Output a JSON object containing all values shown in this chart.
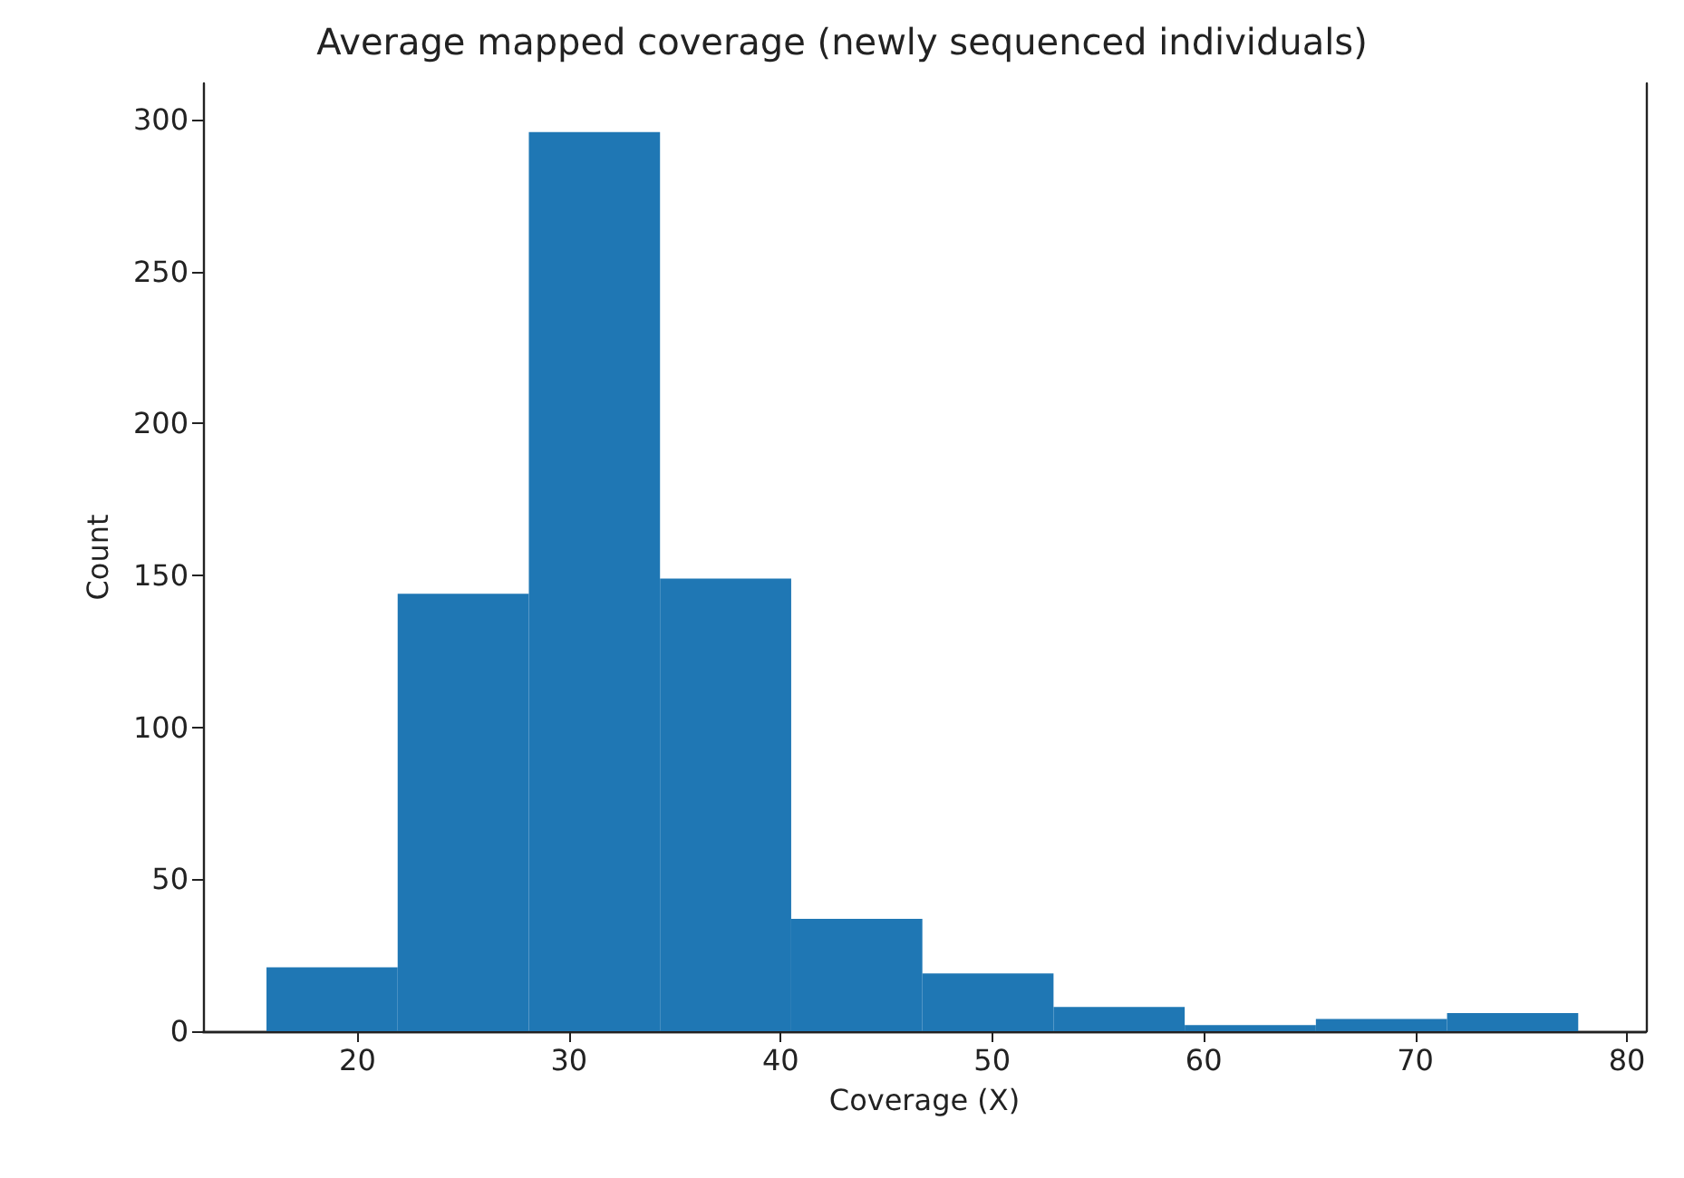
{
  "chart_data": {
    "type": "histogram",
    "title": "Average mapped coverage (newly sequenced individuals)",
    "xlabel": "Coverage (X)",
    "ylabel": "Count",
    "bins": [
      15.7,
      21.9,
      28.1,
      34.3,
      40.5,
      46.7,
      52.9,
      59.1,
      65.3,
      71.5,
      77.7
    ],
    "values": [
      21,
      144,
      296,
      149,
      37,
      19,
      8,
      2,
      4,
      6
    ],
    "color": "#1f77b4",
    "xlim": [
      12.7,
      80.9
    ],
    "xticks": [
      20,
      30,
      40,
      50,
      60,
      70,
      80
    ],
    "ylim": [
      0,
      312
    ],
    "yticks": [
      0,
      50,
      100,
      150,
      200,
      250,
      300
    ],
    "grid": false
  }
}
